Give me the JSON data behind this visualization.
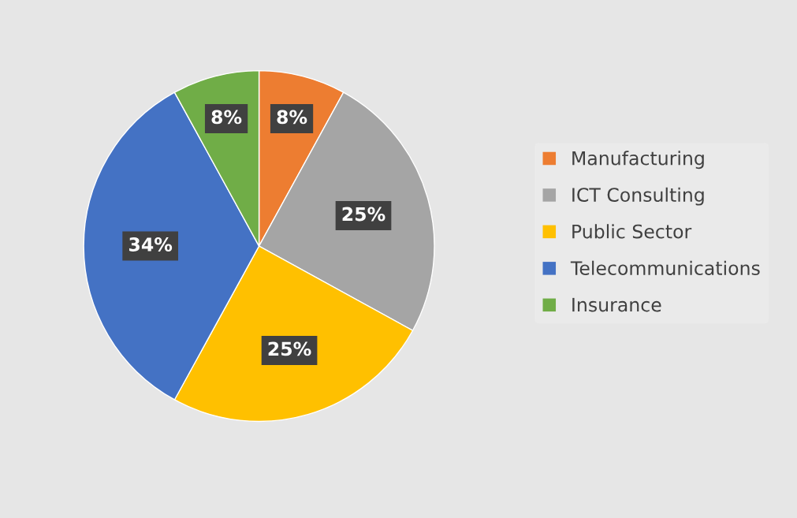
{
  "chart_data": {
    "type": "pie",
    "categories": [
      "Manufacturing",
      "ICT Consulting",
      "Public Sector",
      "Telecommunications",
      "Insurance"
    ],
    "values": [
      8,
      25,
      25,
      34,
      8
    ],
    "colors": [
      "#ed7d31",
      "#a5a5a5",
      "#ffc000",
      "#4472c4",
      "#70ad47"
    ],
    "value_labels": [
      "8%",
      "25%",
      "25%",
      "34%",
      "8%"
    ],
    "legend": "right"
  }
}
